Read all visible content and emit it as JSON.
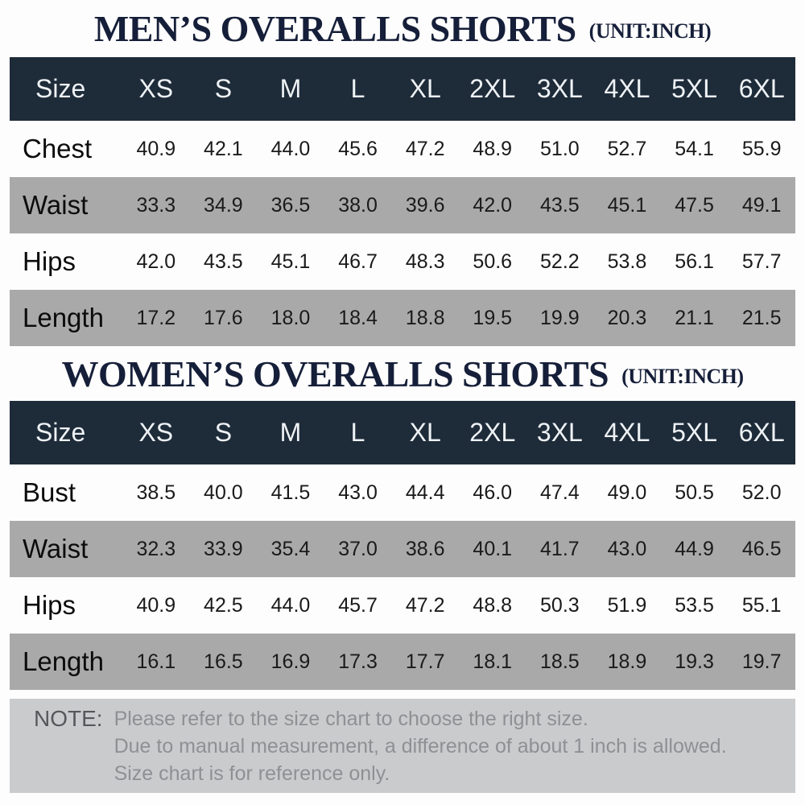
{
  "chart_data": [
    {
      "type": "table",
      "title": "MEN’S OVERALLS SHORTS",
      "unit_label": "(UNIT:INCH)",
      "columns": [
        "Size",
        "XS",
        "S",
        "M",
        "L",
        "XL",
        "2XL",
        "3XL",
        "4XL",
        "5XL",
        "6XL"
      ],
      "rows": [
        {
          "label": "Chest",
          "values": [
            "40.9",
            "42.1",
            "44.0",
            "45.6",
            "47.2",
            "48.9",
            "51.0",
            "52.7",
            "54.1",
            "55.9"
          ]
        },
        {
          "label": "Waist",
          "values": [
            "33.3",
            "34.9",
            "36.5",
            "38.0",
            "39.6",
            "42.0",
            "43.5",
            "45.1",
            "47.5",
            "49.1"
          ]
        },
        {
          "label": "Hips",
          "values": [
            "42.0",
            "43.5",
            "45.1",
            "46.7",
            "48.3",
            "50.6",
            "52.2",
            "53.8",
            "56.1",
            "57.7"
          ]
        },
        {
          "label": "Length",
          "values": [
            "17.2",
            "17.6",
            "18.0",
            "18.4",
            "18.8",
            "19.5",
            "19.9",
            "20.3",
            "21.1",
            "21.5"
          ]
        }
      ]
    },
    {
      "type": "table",
      "title": "WOMEN’S OVERALLS SHORTS",
      "unit_label": "(UNIT:INCH)",
      "columns": [
        "Size",
        "XS",
        "S",
        "M",
        "L",
        "XL",
        "2XL",
        "3XL",
        "4XL",
        "5XL",
        "6XL"
      ],
      "rows": [
        {
          "label": "Bust",
          "values": [
            "38.5",
            "40.0",
            "41.5",
            "43.0",
            "44.4",
            "46.0",
            "47.4",
            "49.0",
            "50.5",
            "52.0"
          ]
        },
        {
          "label": "Waist",
          "values": [
            "32.3",
            "33.9",
            "35.4",
            "37.0",
            "38.6",
            "40.1",
            "41.7",
            "43.0",
            "44.9",
            "46.5"
          ]
        },
        {
          "label": "Hips",
          "values": [
            "40.9",
            "42.5",
            "44.0",
            "45.7",
            "47.2",
            "48.8",
            "50.3",
            "51.9",
            "53.5",
            "55.1"
          ]
        },
        {
          "label": "Length",
          "values": [
            "16.1",
            "16.5",
            "16.9",
            "17.3",
            "17.7",
            "18.1",
            "18.5",
            "18.9",
            "19.3",
            "19.7"
          ]
        }
      ]
    }
  ],
  "note": {
    "label": "NOTE:",
    "lines": [
      "Please refer to the size chart to choose the right size.",
      "Due to manual measurement, a difference of about 1 inch is allowed.",
      "Size chart is for reference only."
    ]
  },
  "colors": {
    "title_text": "#161f39",
    "header_bg": "#1e2b39",
    "header_text": "#eef2f5",
    "row_white_bg": "#fdfdfd",
    "row_gray_bg": "#a9a9a9",
    "row_text": "#1a1a1a",
    "note_bg": "#cacbcc",
    "note_label_text": "#55585b",
    "note_body_text": "#8e9093"
  }
}
